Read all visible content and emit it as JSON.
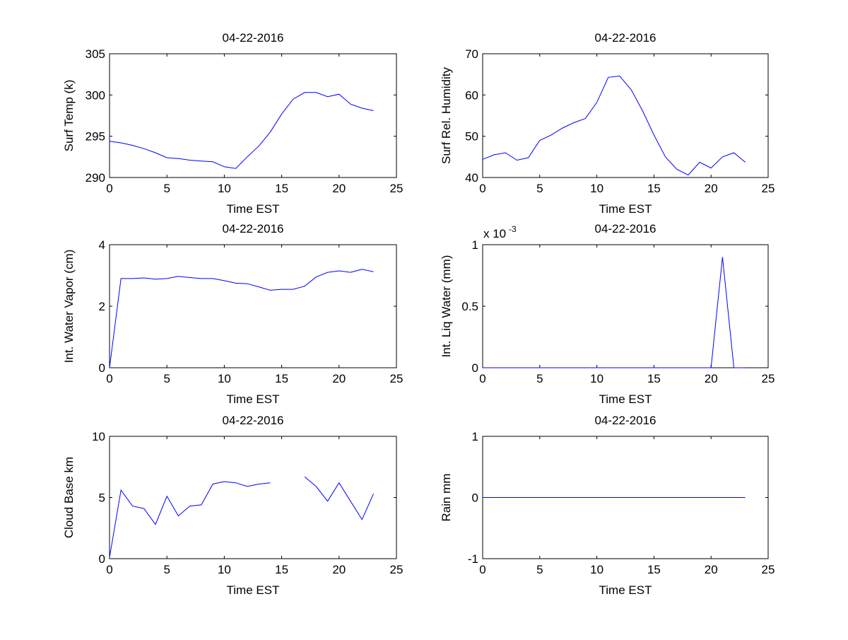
{
  "chart_data": [
    {
      "type": "line",
      "title": "04-22-2016",
      "xlabel": "Time EST",
      "ylabel": "Surf Temp (k)",
      "xlim": [
        0,
        25
      ],
      "ylim": [
        290,
        305
      ],
      "xticks": [
        0,
        5,
        10,
        15,
        20,
        25
      ],
      "yticks": [
        290,
        295,
        300,
        305
      ],
      "x": [
        0,
        1,
        2,
        3,
        4,
        5,
        6,
        7,
        8,
        9,
        10,
        11,
        12,
        13,
        14,
        15,
        16,
        17,
        18,
        19,
        20,
        21,
        22,
        23
      ],
      "y": [
        294.4,
        294.2,
        293.9,
        293.5,
        293.0,
        292.4,
        292.3,
        292.1,
        292.0,
        291.9,
        291.3,
        291.1,
        292.5,
        293.8,
        295.5,
        297.7,
        299.5,
        300.3,
        300.3,
        299.8,
        300.1,
        298.9,
        298.4,
        298.1
      ],
      "color": "#0000ff"
    },
    {
      "type": "line",
      "title": "04-22-2016",
      "xlabel": "Time EST",
      "ylabel": "Surf Rel. Humidity",
      "xlim": [
        0,
        25
      ],
      "ylim": [
        40,
        70
      ],
      "xticks": [
        0,
        5,
        10,
        15,
        20,
        25
      ],
      "yticks": [
        40,
        50,
        60,
        70
      ],
      "x": [
        0,
        1,
        2,
        3,
        4,
        5,
        6,
        7,
        8,
        9,
        10,
        11,
        12,
        13,
        14,
        15,
        16,
        17,
        18,
        19,
        20,
        21,
        22,
        23
      ],
      "y": [
        44.4,
        45.5,
        46.0,
        44.2,
        44.8,
        49.0,
        50.3,
        52.0,
        53.3,
        54.3,
        58.2,
        64.3,
        64.6,
        61.3,
        56.2,
        50.3,
        45.0,
        42.0,
        40.6,
        43.7,
        42.3,
        45.0,
        46.0,
        43.7
      ],
      "color": "#0000ff"
    },
    {
      "type": "line",
      "title": "04-22-2016",
      "xlabel": "Time EST",
      "ylabel": "Int. Water Vapor (cm)",
      "xlim": [
        0,
        25
      ],
      "ylim": [
        0,
        4
      ],
      "xticks": [
        0,
        5,
        10,
        15,
        20,
        25
      ],
      "yticks": [
        0,
        2,
        4
      ],
      "x": [
        0,
        1,
        2,
        3,
        4,
        5,
        6,
        7,
        8,
        9,
        10,
        11,
        12,
        13,
        14,
        15,
        16,
        17,
        18,
        19,
        20,
        21,
        22,
        23
      ],
      "y": [
        0.0,
        2.9,
        2.9,
        2.92,
        2.88,
        2.9,
        2.97,
        2.93,
        2.9,
        2.9,
        2.83,
        2.75,
        2.73,
        2.63,
        2.52,
        2.55,
        2.55,
        2.65,
        2.95,
        3.1,
        3.15,
        3.1,
        3.2,
        3.12
      ],
      "color": "#0000ff"
    },
    {
      "type": "line",
      "title": "04-22-2016",
      "xlabel": "Time EST",
      "ylabel": "Int. Liq Water (mm)",
      "multiplier_label": "x 10",
      "multiplier_exp": "-3",
      "xlim": [
        0,
        25
      ],
      "ylim": [
        0,
        0.001
      ],
      "xticks": [
        0,
        5,
        10,
        15,
        20,
        25
      ],
      "yticks": [
        0,
        0.0005,
        0.001
      ],
      "ytick_labels": [
        "0",
        "0.5",
        "1"
      ],
      "x": [
        0,
        1,
        2,
        3,
        4,
        5,
        6,
        7,
        8,
        9,
        10,
        11,
        12,
        13,
        14,
        15,
        16,
        17,
        18,
        19,
        20,
        21,
        22,
        23
      ],
      "y": [
        0,
        0,
        0,
        0,
        0,
        0,
        0,
        0,
        0,
        0,
        0,
        0,
        0,
        0,
        0,
        0,
        0,
        0,
        0,
        0,
        0,
        0.0009,
        0,
        0
      ],
      "color": "#0000ff"
    },
    {
      "type": "line",
      "title": "04-22-2016",
      "xlabel": "Time EST",
      "ylabel": "Cloud Base km",
      "xlim": [
        0,
        25
      ],
      "ylim": [
        0,
        10
      ],
      "xticks": [
        0,
        5,
        10,
        15,
        20,
        25
      ],
      "yticks": [
        0,
        5,
        10
      ],
      "x": [
        0,
        1,
        2,
        3,
        4,
        5,
        6,
        7,
        8,
        9,
        10,
        11,
        12,
        13,
        14,
        15,
        16,
        17,
        18,
        19,
        20,
        21,
        22,
        23
      ],
      "y": [
        0.1,
        5.6,
        4.3,
        4.1,
        2.8,
        5.1,
        3.5,
        4.3,
        4.4,
        6.1,
        6.3,
        6.2,
        5.9,
        6.1,
        6.2,
        null,
        null,
        6.7,
        5.9,
        4.7,
        6.2,
        4.7,
        3.2,
        5.3
      ],
      "color": "#0000ff"
    },
    {
      "type": "line",
      "title": "04-22-2016",
      "xlabel": "Time EST",
      "ylabel": "Rain mm",
      "xlim": [
        0,
        25
      ],
      "ylim": [
        -1,
        1
      ],
      "xticks": [
        0,
        5,
        10,
        15,
        20,
        25
      ],
      "yticks": [
        -1,
        0,
        1
      ],
      "x": [
        0,
        1,
        2,
        3,
        4,
        5,
        6,
        7,
        8,
        9,
        10,
        11,
        12,
        13,
        14,
        15,
        16,
        17,
        18,
        19,
        20,
        21,
        22,
        23
      ],
      "y": [
        0,
        0,
        0,
        0,
        0,
        0,
        0,
        0,
        0,
        0,
        0,
        0,
        0,
        0,
        0,
        0,
        0,
        0,
        0,
        0,
        0,
        0,
        0,
        0
      ],
      "color": "#0000ff"
    }
  ]
}
